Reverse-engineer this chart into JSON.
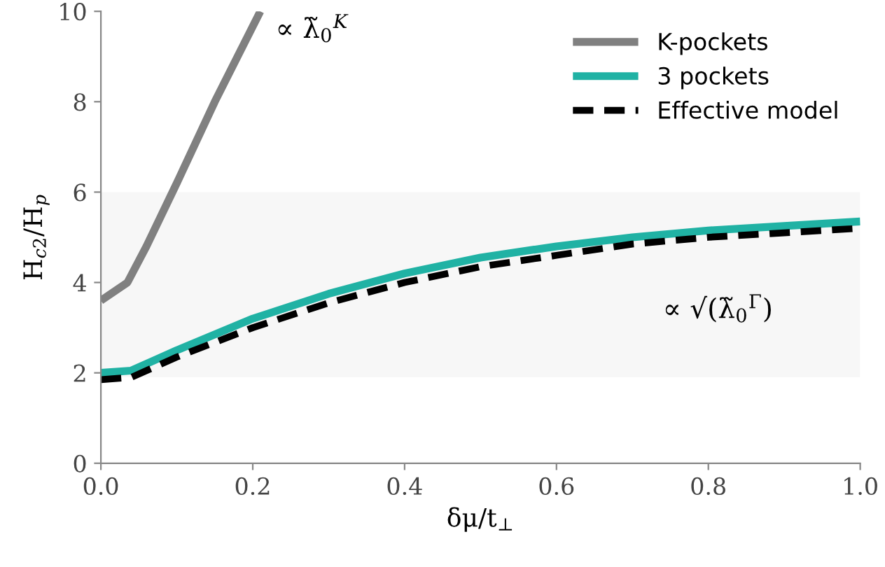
{
  "chart_data": {
    "type": "line",
    "xlabel": "δμ/t$_{⊥}$",
    "ylabel": "H$_{c2}$/H$_{p}$",
    "xlim": [
      0,
      1
    ],
    "ylim": [
      0,
      10
    ],
    "xticks": [
      {
        "value": 0,
        "label": "0.0"
      },
      {
        "value": 0.2,
        "label": "0.2"
      },
      {
        "value": 0.4,
        "label": "0.4"
      },
      {
        "value": 0.6,
        "label": "0.6"
      },
      {
        "value": 0.8,
        "label": "0.8"
      },
      {
        "value": 1,
        "label": "1.0"
      }
    ],
    "yticks": [
      0,
      2,
      4,
      6,
      8,
      10
    ],
    "grid": false,
    "legend": "top right",
    "series": [
      {
        "name": "K-pockets",
        "color": "#808080",
        "x": [
          0,
          0.035,
          0.06,
          0.1,
          0.15,
          0.21
        ],
        "values": [
          3.6,
          4.0,
          4.8,
          6.2,
          8.0,
          10.0
        ]
      },
      {
        "name": "3 pockets",
        "color": "#20b2a4",
        "x": [
          0,
          0.04,
          0.1,
          0.2,
          0.3,
          0.4,
          0.5,
          0.6,
          0.7,
          0.8,
          0.9,
          1.0
        ],
        "values": [
          2.0,
          2.05,
          2.5,
          3.2,
          3.75,
          4.2,
          4.55,
          4.8,
          5.0,
          5.15,
          5.25,
          5.35
        ]
      },
      {
        "name": "Effective model",
        "color": "#000000",
        "line_style": "dashed",
        "x": [
          0,
          0.04,
          0.1,
          0.2,
          0.3,
          0.4,
          0.5,
          0.6,
          0.7,
          0.8,
          0.9,
          1.0
        ],
        "values": [
          1.85,
          1.9,
          2.35,
          3.0,
          3.55,
          4.0,
          4.35,
          4.6,
          4.85,
          5.0,
          5.1,
          5.2
        ]
      }
    ],
    "bands": [
      {
        "axis": "y",
        "from": 1.9,
        "to": 6.0,
        "color": "#f7f7f7"
      }
    ],
    "annotations": [
      "∝ λ̃$_{0}$$^{K}$",
      "∝ √(λ̃$_{0}$$^{Γ}$)"
    ]
  }
}
